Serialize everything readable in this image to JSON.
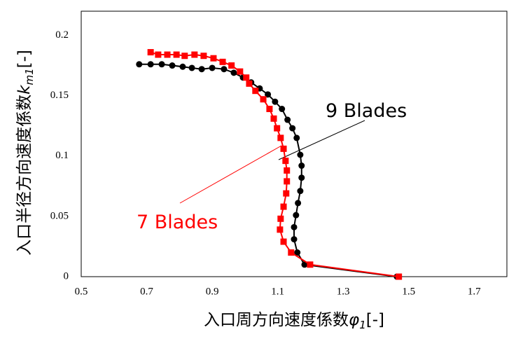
{
  "chart_data": {
    "type": "line",
    "xlabel": {
      "main": "入口周方向速度係数",
      "symbol": "φ",
      "sub": "1",
      "unit": "[-]"
    },
    "ylabel": {
      "main": "入口半径方向速度係数",
      "symbol": "k",
      "sub": "m1",
      "unit": "[-]"
    },
    "xlim": [
      0.5,
      1.8
    ],
    "xticks": [
      0.5,
      0.7,
      0.9,
      1.1,
      1.3,
      1.5,
      1.7
    ],
    "ylim": [
      0,
      0.22
    ],
    "yticks": [
      0,
      0.05,
      0.1,
      0.15,
      0.2
    ],
    "grid": false,
    "series": [
      {
        "name": "9 Blades",
        "color": "#000000",
        "marker": "circle",
        "x": [
          0.677,
          0.712,
          0.746,
          0.778,
          0.81,
          0.838,
          0.868,
          0.9,
          0.936,
          0.966,
          0.994,
          1.019,
          1.045,
          1.07,
          1.092,
          1.113,
          1.13,
          1.145,
          1.158,
          1.169,
          1.173,
          1.173,
          1.169,
          1.162,
          1.156,
          1.15,
          1.15,
          1.16,
          1.182,
          1.464
        ],
        "values": [
          0.176,
          0.176,
          0.176,
          0.175,
          0.174,
          0.173,
          0.172,
          0.173,
          0.172,
          0.169,
          0.165,
          0.161,
          0.156,
          0.151,
          0.145,
          0.139,
          0.13,
          0.123,
          0.115,
          0.101,
          0.092,
          0.082,
          0.071,
          0.061,
          0.051,
          0.041,
          0.031,
          0.02,
          0.01,
          0.0
        ]
      },
      {
        "name": "7 Blades",
        "color": "#ff0000",
        "marker": "square",
        "x": [
          0.712,
          0.735,
          0.763,
          0.791,
          0.816,
          0.846,
          0.874,
          0.904,
          0.932,
          0.959,
          0.985,
          1.004,
          1.013,
          1.032,
          1.056,
          1.075,
          1.088,
          1.098,
          1.109,
          1.118,
          1.124,
          1.128,
          1.128,
          1.126,
          1.118,
          1.109,
          1.107,
          1.118,
          1.141,
          1.199,
          1.47
        ],
        "values": [
          0.186,
          0.184,
          0.184,
          0.184,
          0.183,
          0.184,
          0.183,
          0.181,
          0.178,
          0.175,
          0.17,
          0.165,
          0.16,
          0.154,
          0.147,
          0.139,
          0.131,
          0.123,
          0.115,
          0.106,
          0.096,
          0.088,
          0.079,
          0.069,
          0.058,
          0.048,
          0.039,
          0.029,
          0.02,
          0.01,
          0.0
        ]
      }
    ]
  }
}
